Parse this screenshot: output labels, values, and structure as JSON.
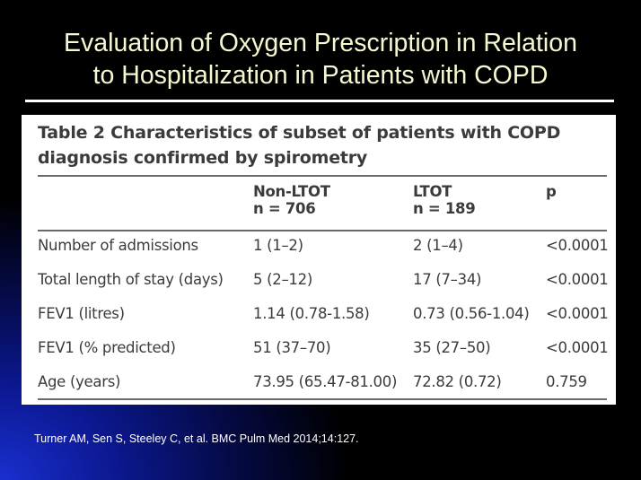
{
  "slide": {
    "title_line1": "Evaluation of Oxygen Prescription in Relation",
    "title_line2": "to Hospitalization in Patients with COPD"
  },
  "table": {
    "caption_line1": "Table 2 Characteristics of subset of patients with COPD",
    "caption_line2": "diagnosis confirmed by spirometry",
    "header": {
      "col1_line1": "Non-LTOT",
      "col1_line2": "n = 706",
      "col2_line1": "LTOT",
      "col2_line2": "n = 189",
      "col3": "p"
    },
    "rows": [
      {
        "label": "Number of admissions",
        "non_ltot": "1 (1–2)",
        "ltot": "2 (1–4)",
        "p": "<0.0001"
      },
      {
        "label": "Total length of stay (days)",
        "non_ltot": "5 (2–12)",
        "ltot": "17 (7–34)",
        "p": "<0.0001"
      },
      {
        "label": "FEV1 (litres)",
        "non_ltot": "1.14 (0.78-1.58)",
        "ltot": "0.73 (0.56-1.04)",
        "p": "<0.0001"
      },
      {
        "label": "FEV1 (% predicted)",
        "non_ltot": "51 (37–70)",
        "ltot": "35 (27–50)",
        "p": "<0.0001"
      },
      {
        "label": "Age (years)",
        "non_ltot": "73.95 (65.47-81.00)",
        "ltot": "72.82 (0.72)",
        "p": "0.759"
      }
    ]
  },
  "citation": "Turner AM, Sen S, Steeley C, et al. BMC Pulm Med 2014;14:127.",
  "colors": {
    "title_text": "#f7f7d0",
    "table_text": "#3b3b3b",
    "background_glow": "#1a2fd0"
  }
}
